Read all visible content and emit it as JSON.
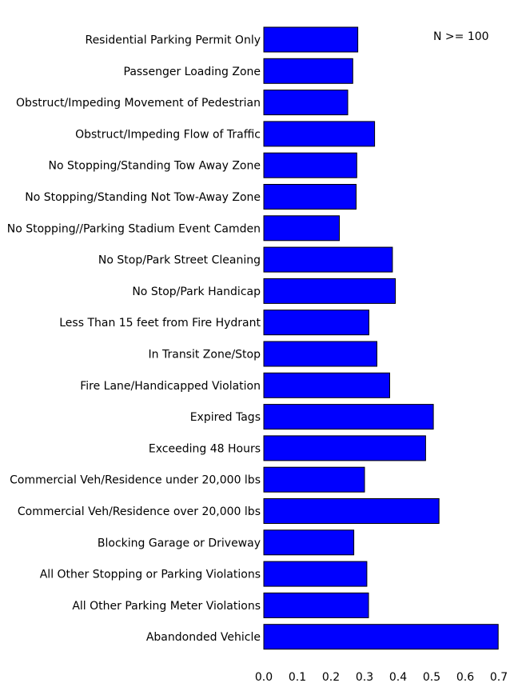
{
  "chart_data": {
    "type": "bar",
    "orientation": "horizontal",
    "categories": [
      "Residential Parking Permit Only",
      "Passenger Loading Zone",
      "Obstruct/Impeding Movement of Pedestrian",
      "Obstruct/Impeding Flow of Traffic",
      "No Stopping/Standing Tow Away Zone",
      "No Stopping/Standing Not Tow-Away Zone",
      "No Stopping//Parking Stadium Event Camden",
      "No Stop/Park Street Cleaning",
      "No Stop/Park Handicap",
      "Less Than 15 feet from Fire Hydrant",
      "In Transit Zone/Stop",
      "Fire Lane/Handicapped Violation",
      "Expired Tags",
      "Exceeding 48 Hours",
      "Commercial Veh/Residence under 20,000 lbs",
      "Commercial Veh/Residence over 20,000 lbs",
      "Blocking Garage or Driveway",
      "All Other Stopping or Parking Violations",
      "All Other Parking Meter Violations",
      "Abandonded Vehicle"
    ],
    "values": [
      0.28,
      0.265,
      0.25,
      0.33,
      0.277,
      0.275,
      0.225,
      0.383,
      0.392,
      0.313,
      0.337,
      0.375,
      0.505,
      0.482,
      0.3,
      0.522,
      0.268,
      0.307,
      0.312,
      0.698
    ],
    "xlim": [
      0.0,
      0.7
    ],
    "xticks": [
      "0.0",
      "0.1",
      "0.2",
      "0.3",
      "0.4",
      "0.5",
      "0.6",
      "0.7"
    ],
    "annotation": "N >= 100",
    "bar_color": "#0000ff",
    "bar_edge_color": "#000000",
    "grid": false,
    "title": "",
    "xlabel": "",
    "ylabel": ""
  }
}
